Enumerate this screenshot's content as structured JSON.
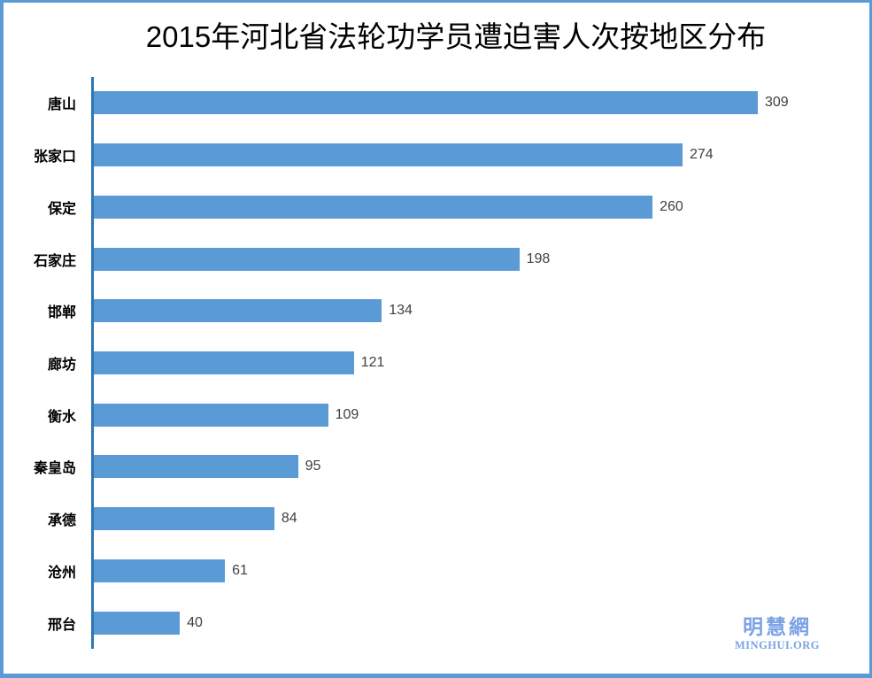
{
  "chart_data": {
    "type": "bar",
    "orientation": "horizontal",
    "title": "2015年河北省法轮功学员遭迫害人次按地区分布",
    "categories": [
      "唐山",
      "张家口",
      "保定",
      "石家庄",
      "邯郸",
      "廊坊",
      "衡水",
      "秦皇岛",
      "承德",
      "沧州",
      "邢台"
    ],
    "values": [
      309,
      274,
      260,
      198,
      134,
      121,
      109,
      95,
      84,
      61,
      40
    ],
    "xlabel": "",
    "ylabel": "",
    "xlim": [
      0,
      320
    ],
    "grid": false,
    "legend": false,
    "data_labels": true,
    "bar_color": "#5B9BD5",
    "axis_line_color": "#2E75B6",
    "frame_border_color": "#5B9BD5"
  },
  "watermark": {
    "chinese": "明慧網",
    "latin": "MINGHUI.ORG"
  }
}
